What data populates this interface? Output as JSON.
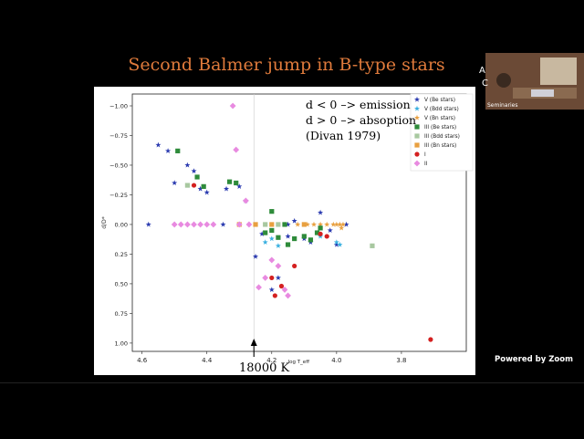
{
  "slide": {
    "title": "Second Balmer jump in B-type stars",
    "annotation_lines": [
      "d < 0 –> emission",
      "d > 0 –> absoption",
      "(Divan 1979)"
    ],
    "arrow_label": "18000 K"
  },
  "video": {
    "participant_label": "Seminaries",
    "edge_chars": [
      "A",
      "C"
    ]
  },
  "zoom": {
    "powered_by": "Powered by Zoom"
  },
  "chart_data": {
    "type": "scatter",
    "xlabel": "log T_eff",
    "ylabel": "d/D*",
    "xlim": [
      4.63,
      3.6
    ],
    "ylim": [
      -1.1,
      1.07
    ],
    "y_inverted": true,
    "xticks": [
      "4.6",
      "4.4",
      "4.2",
      "4.0",
      "3.8"
    ],
    "xtick_values": [
      4.6,
      4.4,
      4.2,
      4.0,
      3.8
    ],
    "yticks": [
      "−1.00",
      "−0.75",
      "−0.50",
      "−0.25",
      "0.00",
      "0.25",
      "0.50",
      "0.75",
      "1.00"
    ],
    "ytick_values": [
      -1.0,
      -0.75,
      -0.5,
      -0.25,
      0.0,
      0.25,
      0.5,
      0.75,
      1.0
    ],
    "vline_x": 4.255,
    "legend_position": "top-right",
    "series": [
      {
        "name": "V (Be stars)",
        "marker": "star",
        "color": "#2b3bb0",
        "points": [
          [
            4.58,
            0.0
          ],
          [
            4.55,
            -0.67
          ],
          [
            4.52,
            -0.62
          ],
          [
            4.5,
            -0.35
          ],
          [
            4.46,
            -0.5
          ],
          [
            4.44,
            -0.45
          ],
          [
            4.42,
            -0.3
          ],
          [
            4.4,
            -0.27
          ],
          [
            4.34,
            -0.3
          ],
          [
            4.3,
            -0.32
          ],
          [
            4.28,
            -0.2
          ],
          [
            4.25,
            0.27
          ],
          [
            4.23,
            0.08
          ],
          [
            4.2,
            0.55
          ],
          [
            4.18,
            0.45
          ],
          [
            4.15,
            0.1
          ],
          [
            4.13,
            -0.03
          ],
          [
            4.1,
            0.12
          ],
          [
            4.08,
            0.15
          ],
          [
            4.05,
            -0.1
          ],
          [
            4.02,
            0.05
          ],
          [
            4.0,
            0.17
          ],
          [
            3.97,
            0.0
          ],
          [
            4.35,
            0.0
          ],
          [
            4.15,
            0.0
          ]
        ]
      },
      {
        "name": "V (Bdd stars)",
        "marker": "star",
        "color": "#3ab0e0",
        "points": [
          [
            4.22,
            0.15
          ],
          [
            4.2,
            0.12
          ],
          [
            4.18,
            0.18
          ],
          [
            4.05,
            0.1
          ],
          [
            4.0,
            0.15
          ],
          [
            3.99,
            0.17
          ]
        ]
      },
      {
        "name": "V (Bn stars)",
        "marker": "star",
        "color": "#e8a040",
        "points": [
          [
            4.12,
            0.0
          ],
          [
            4.09,
            0.0
          ],
          [
            4.07,
            0.0
          ],
          [
            4.05,
            0.0
          ],
          [
            4.03,
            0.0
          ],
          [
            4.01,
            0.0
          ],
          [
            4.0,
            0.0
          ],
          [
            3.99,
            0.0
          ],
          [
            3.98,
            0.0
          ],
          [
            3.985,
            0.03
          ]
        ]
      },
      {
        "name": "III (Be stars)",
        "marker": "square",
        "color": "#2e8b3a",
        "points": [
          [
            4.49,
            -0.62
          ],
          [
            4.43,
            -0.4
          ],
          [
            4.41,
            -0.32
          ],
          [
            4.33,
            -0.36
          ],
          [
            4.31,
            -0.35
          ],
          [
            4.2,
            -0.11
          ],
          [
            4.16,
            0.0
          ],
          [
            4.15,
            0.17
          ],
          [
            4.13,
            0.12
          ],
          [
            4.1,
            0.1
          ],
          [
            4.08,
            0.13
          ],
          [
            4.06,
            0.07
          ],
          [
            4.05,
            0.03
          ],
          [
            4.2,
            0.05
          ],
          [
            4.22,
            0.07
          ],
          [
            4.18,
            0.11
          ]
        ]
      },
      {
        "name": "III (Bdd stars)",
        "marker": "square",
        "color": "#a8c8a0",
        "points": [
          [
            4.46,
            -0.33
          ],
          [
            4.22,
            0.0
          ],
          [
            4.18,
            0.0
          ],
          [
            3.89,
            0.18
          ]
        ]
      },
      {
        "name": "III (Bn stars)",
        "marker": "square",
        "color": "#e8a040",
        "points": [
          [
            4.3,
            0.0
          ],
          [
            4.25,
            0.0
          ],
          [
            4.2,
            0.0
          ],
          [
            4.1,
            0.0
          ]
        ]
      },
      {
        "name": "I",
        "marker": "circle",
        "color": "#d42020",
        "points": [
          [
            4.44,
            -0.33
          ],
          [
            4.2,
            0.45
          ],
          [
            4.19,
            0.6
          ],
          [
            4.17,
            0.52
          ],
          [
            4.13,
            0.35
          ],
          [
            4.05,
            0.08
          ],
          [
            4.03,
            0.1
          ],
          [
            3.71,
            0.97
          ]
        ]
      },
      {
        "name": "II",
        "marker": "diamond",
        "color": "#e88ae0",
        "points": [
          [
            4.5,
            0.0
          ],
          [
            4.48,
            0.0
          ],
          [
            4.46,
            0.0
          ],
          [
            4.44,
            0.0
          ],
          [
            4.42,
            0.0
          ],
          [
            4.4,
            0.0
          ],
          [
            4.38,
            0.0
          ],
          [
            4.32,
            -1.0
          ],
          [
            4.31,
            -0.63
          ],
          [
            4.28,
            -0.2
          ],
          [
            4.3,
            0.0
          ],
          [
            4.27,
            0.0
          ],
          [
            4.24,
            0.53
          ],
          [
            4.22,
            0.45
          ],
          [
            4.2,
            0.3
          ],
          [
            4.18,
            0.35
          ],
          [
            4.16,
            0.55
          ],
          [
            4.15,
            0.6
          ]
        ]
      }
    ]
  }
}
